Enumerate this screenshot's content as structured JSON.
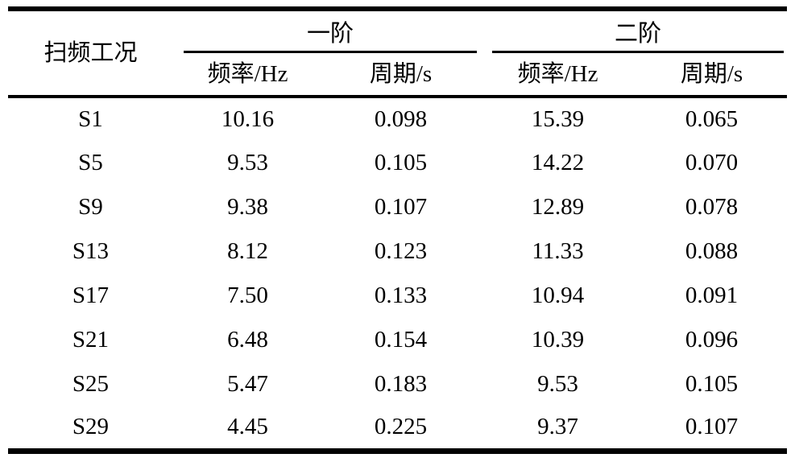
{
  "table": {
    "row_header_title": "扫频工况",
    "group_headers": [
      {
        "label": "一阶",
        "columns": [
          "频率/Hz",
          "周期/s"
        ]
      },
      {
        "label": "二阶",
        "columns": [
          "频率/Hz",
          "周期/s"
        ]
      }
    ],
    "rows": [
      [
        "S1",
        "10.16",
        "0.098",
        "15.39",
        "0.065"
      ],
      [
        "S5",
        "9.53",
        "0.105",
        "14.22",
        "0.070"
      ],
      [
        "S9",
        "9.38",
        "0.107",
        "12.89",
        "0.078"
      ],
      [
        "S13",
        "8.12",
        "0.123",
        "11.33",
        "0.088"
      ],
      [
        "S17",
        "7.50",
        "0.133",
        "10.94",
        "0.091"
      ],
      [
        "S21",
        "6.48",
        "0.154",
        "10.39",
        "0.096"
      ],
      [
        "S25",
        "5.47",
        "0.183",
        "9.53",
        "0.105"
      ],
      [
        "S29",
        "4.45",
        "0.225",
        "9.37",
        "0.107"
      ]
    ]
  },
  "colors": {
    "text": "#000000",
    "rule": "#000000",
    "background": "#ffffff"
  }
}
